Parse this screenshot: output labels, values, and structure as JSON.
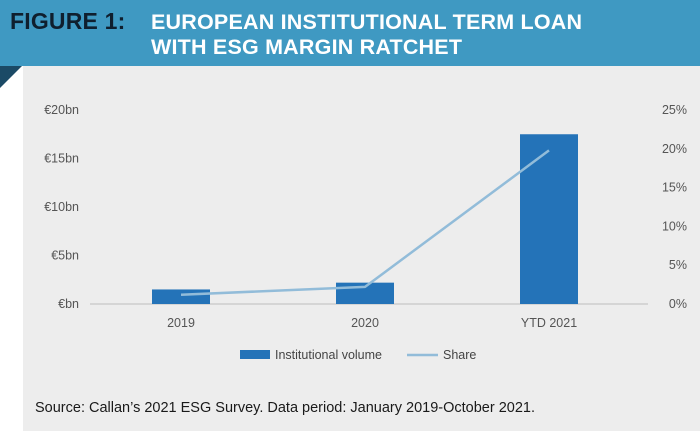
{
  "header": {
    "figure_label": "FIGURE 1:",
    "title_line1": "EUROPEAN INSTITUTIONAL TERM LOAN",
    "title_line2": "WITH ESG MARGIN RATCHET"
  },
  "colors": {
    "header_bg": "#3f99c2",
    "header_fold": "#1b4a66",
    "panel_bg": "#ededed",
    "bar": "#2473b8",
    "line": "#92bcd9",
    "axis": "#bdbdbd"
  },
  "chart_data": {
    "type": "bar",
    "categories": [
      "2019",
      "2020",
      "YTD 2021"
    ],
    "series": [
      {
        "name": "Institutional volume",
        "type": "bar",
        "axis": "left",
        "unit": "€bn",
        "values": [
          1.5,
          2.2,
          17.5
        ]
      },
      {
        "name": "Share",
        "type": "line",
        "axis": "right",
        "unit": "%",
        "values": [
          1.2,
          2.2,
          19.8
        ]
      }
    ],
    "y_left": {
      "ticks": [
        "€bn",
        "€5bn",
        "€10bn",
        "€15bn",
        "€20bn"
      ],
      "ylim": [
        0,
        20
      ]
    },
    "y_right": {
      "ticks": [
        "0%",
        "5%",
        "10%",
        "15%",
        "20%",
        "25%"
      ],
      "ylim": [
        0,
        25
      ]
    },
    "grid": false,
    "legend_position": "bottom"
  },
  "source": "Source: Callan’s 2021 ESG Survey. Data period: January 2019-October 2021."
}
